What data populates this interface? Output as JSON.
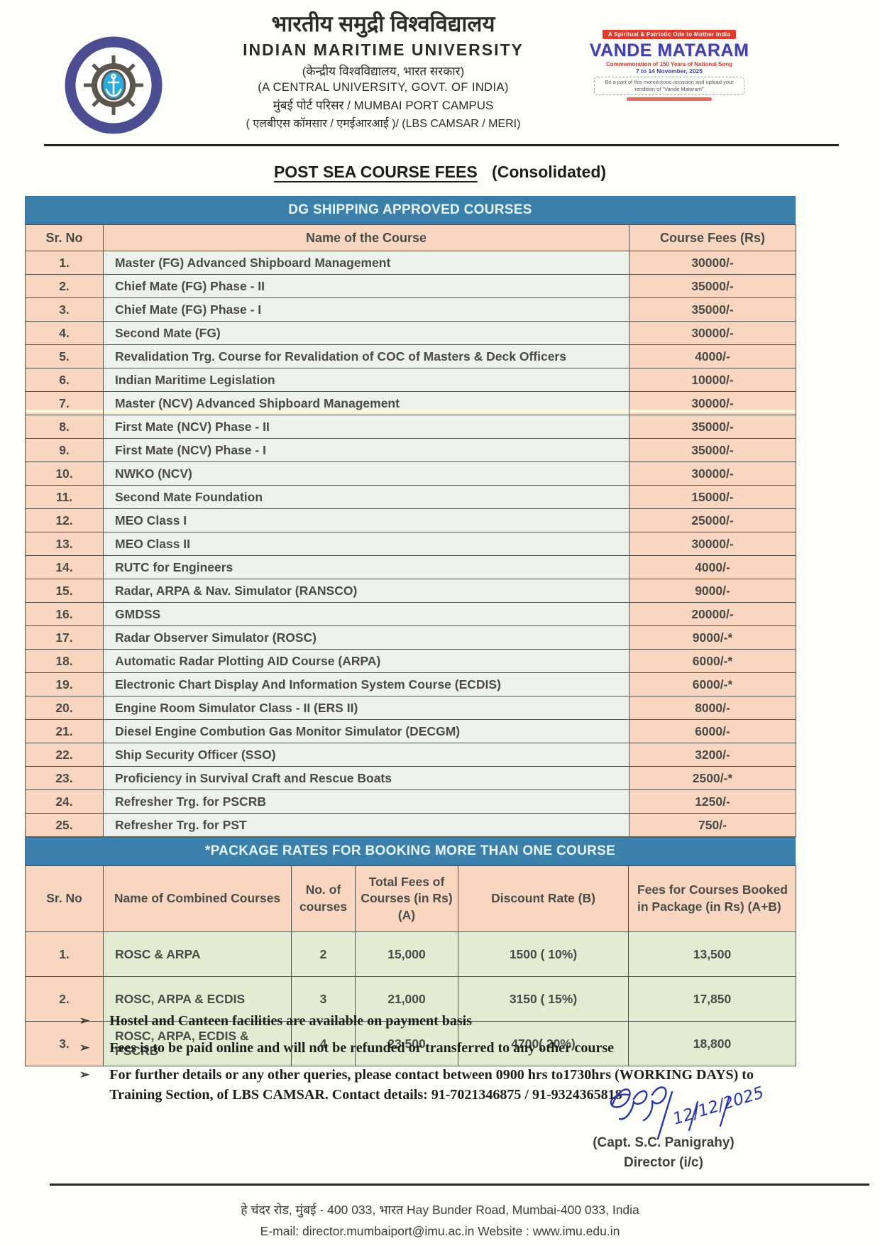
{
  "header": {
    "university_hi": "भारतीय समुद्री विश्वविद्यालय",
    "university_en": "INDIAN MARITIME UNIVERSITY",
    "central_university_hi": "(केन्द्रीय विश्वविद्यालय,  भारत सरकार)",
    "central_university_en": "(A CENTRAL UNIVERSITY, GOVT.  OF  INDIA)",
    "campus_line_hi_en": "मुंबई  पोर्ट परिसर / MUMBAI  PORT  CAMPUS",
    "campus_line2": "( एलबीएस कॉमसार / एमईआरआई )/ (LBS CAMSAR / MERI)",
    "logo_ring_text": "INDIAN MARITIME UNIVERSITY"
  },
  "vande_mataram_banner": {
    "tagline": "A Spiritual & Patriotic Ode to Mother India",
    "title": "VANDE MATARAM",
    "subtitle": "Commemoration of 150 Years of National Song",
    "dates": "7 to 14 November, 2025",
    "callout": "Be a part of this momentous occasion and upload your rendition of \"Vande Mataram\""
  },
  "title": {
    "main": "POST SEA COURSE FEES",
    "suffix": "(Consolidated)"
  },
  "colors": {
    "banner_blue": "#3b80ab",
    "cell_peach": "#f9d6bf",
    "cell_light_green": "#eef2ec",
    "package_green": "#e1ecd2",
    "signature_ink": "#2b36a6"
  },
  "courses_table": {
    "banner": "DG SHIPPING APPROVED COURSES",
    "headers": [
      "Sr. No",
      "Name  of  the Course",
      "Course Fees  (Rs)"
    ],
    "rows": [
      [
        "1.",
        "Master (FG) Advanced Shipboard Management",
        "30000/-"
      ],
      [
        "2.",
        "Chief  Mate (FG) Phase - II",
        "35000/-"
      ],
      [
        "3.",
        "Chief  Mate (FG) Phase - I",
        "35000/-"
      ],
      [
        "4.",
        "Second Mate (FG)",
        "30000/-"
      ],
      [
        "5.",
        "Revalidation Trg. Course for Revalidation of COC of Masters & Deck Officers",
        "4000/-"
      ],
      [
        "6.",
        "Indian Maritime Legislation",
        "10000/-"
      ],
      [
        "7.",
        "Master (NCV) Advanced Shipboard Management",
        "30000/-"
      ],
      [
        "8.",
        "First Mate (NCV) Phase - II",
        "35000/-"
      ],
      [
        "9.",
        "First Mate (NCV) Phase - I",
        "35000/-"
      ],
      [
        "10.",
        "NWKO (NCV)",
        "30000/-"
      ],
      [
        "11.",
        "Second Mate Foundation",
        "15000/-"
      ],
      [
        "12.",
        "MEO Class  I",
        "25000/-"
      ],
      [
        "13.",
        "MEO Class II",
        "30000/-"
      ],
      [
        "14.",
        "RUTC  for Engineers",
        "4000/-"
      ],
      [
        "15.",
        "Radar, ARPA & Nav. Simulator (RANSCO)",
        "9000/-"
      ],
      [
        "16.",
        "GMDSS",
        "20000/-"
      ],
      [
        "17.",
        "Radar Observer Simulator (ROSC)",
        "9000/-*"
      ],
      [
        "18.",
        "Automatic Radar Plotting AID Course (ARPA)",
        "6000/-*"
      ],
      [
        "19.",
        "Electronic Chart Display And Information System Course (ECDIS)",
        "6000/-*"
      ],
      [
        "20.",
        "Engine Room Simulator Class - II (ERS II)",
        "8000/-"
      ],
      [
        "21.",
        "Diesel Engine Combution Gas Monitor Simulator (DECGM)",
        "6000/-"
      ],
      [
        "22.",
        "Ship Security Officer (SSO)",
        "3200/-"
      ],
      [
        "23.",
        "Proficiency in Survival Craft and Rescue Boats",
        "2500/-*"
      ],
      [
        "24.",
        "Refresher  Trg. for  PSCRB",
        "1250/-"
      ],
      [
        "25.",
        "Refresher Trg. for PST",
        "750/-"
      ]
    ]
  },
  "package_table": {
    "banner": "*PACKAGE RATES FOR BOOKING MORE THAN ONE COURSE",
    "headers": [
      "Sr. No",
      "Name of Combined Courses",
      "No. of courses",
      "Total Fees of Courses (in Rs) (A)",
      "Discount Rate (B)",
      "Fees for Courses Booked in Package (in Rs)  (A+B)"
    ],
    "rows": [
      [
        "1.",
        "ROSC & ARPA",
        "2",
        "15,000",
        "1500 ( 10%)",
        "13,500"
      ],
      [
        "2.",
        "ROSC, ARPA & ECDIS",
        "3",
        "21,000",
        "3150 ( 15%)",
        "17,850"
      ],
      [
        "3.",
        "ROSC, ARPA, ECDIS & PSCRB",
        "4",
        "23,500",
        "4700( 20%)",
        "18,800"
      ]
    ]
  },
  "notes": {
    "bullet": "➢",
    "items": [
      "Hostel and Canteen facilities are available on payment basis",
      "Fees is to be paid online and will not be refunded  or transferred to any other course",
      "For further details or any other queries, please contact between 0900 hrs to1730hrs (WORKING DAYS) to Training Section, of LBS CAMSAR. Contact details: 91-7021346875 /  91-9324365818"
    ]
  },
  "signature": {
    "handwritten_date": "12/12/2025",
    "name": "(Capt. S.C. Panigrahy)",
    "designation": "Director (i/c)"
  },
  "footer": {
    "address": "हे चंदर रोड,  मुंबई - 400  033,  भारत     Hay Bunder Road,  Mumbai-400 033,  India",
    "contact": "E-mail:  director.mumbaiport@imu.ac.in   Website : www.imu.edu.in"
  }
}
